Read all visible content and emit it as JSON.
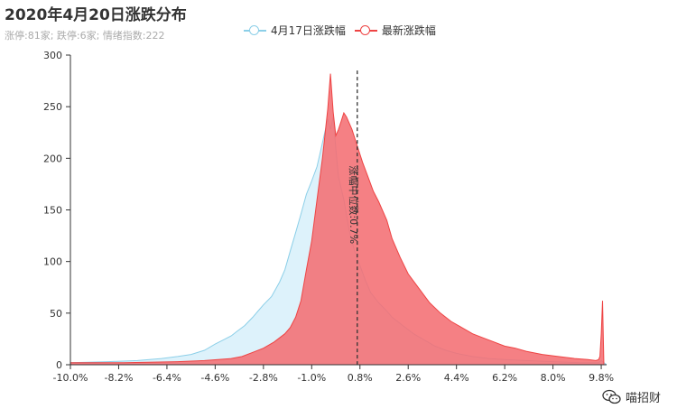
{
  "title": "2020年4月20日涨跌分布",
  "subtitle": "涨停:81家; 跌停:6家; 情绪指数:222",
  "watermark": "喵招财",
  "colors": {
    "series1_line": "#8ccfe8",
    "series1_fill": "#d9f1fb",
    "series2_line": "#ee4444",
    "series2_fill": "#f46e73",
    "axis": "#333333",
    "median_line": "#333333"
  },
  "chart_data": {
    "type": "area",
    "title": "2020年4月20日涨跌分布",
    "xlim": [
      -10.0,
      10.0
    ],
    "ylim": [
      0,
      300
    ],
    "y_ticks": [
      0,
      50,
      100,
      150,
      200,
      250,
      300
    ],
    "x_tick_labels": [
      "-10.0%",
      "-8.2%",
      "-6.4%",
      "-4.6%",
      "-2.8%",
      "-1.0%",
      "0.8%",
      "2.6%",
      "4.4%",
      "6.2%",
      "8.0%",
      "9.8%"
    ],
    "x_tick_values": [
      -10.0,
      -8.2,
      -6.4,
      -4.6,
      -2.8,
      -1.0,
      0.8,
      2.6,
      4.4,
      6.2,
      8.0,
      9.8
    ],
    "legend_position": "top-center",
    "series": [
      {
        "name": "4月17日涨跌幅",
        "x": [
          -10.0,
          -8.6,
          -7.5,
          -6.6,
          -6.0,
          -5.5,
          -5.0,
          -4.6,
          -4.3,
          -4.0,
          -3.8,
          -3.5,
          -3.2,
          -3.0,
          -2.8,
          -2.5,
          -2.2,
          -2.0,
          -1.8,
          -1.6,
          -1.4,
          -1.2,
          -1.0,
          -0.8,
          -0.6,
          -0.4,
          -0.3,
          -0.2,
          -0.1,
          0.0,
          0.2,
          0.4,
          0.6,
          0.8,
          1.0,
          1.2,
          1.5,
          1.8,
          2.0,
          2.4,
          2.8,
          3.2,
          3.6,
          4.0,
          4.4,
          5.0,
          5.6,
          6.2,
          7.0,
          8.0,
          9.0,
          9.7,
          9.8,
          9.9,
          10.0
        ],
        "values": [
          2,
          3,
          4,
          6,
          8,
          10,
          14,
          20,
          24,
          28,
          32,
          38,
          46,
          52,
          58,
          66,
          80,
          92,
          110,
          128,
          146,
          165,
          178,
          192,
          215,
          238,
          228,
          240,
          210,
          182,
          160,
          130,
          110,
          96,
          82,
          70,
          60,
          52,
          46,
          38,
          30,
          24,
          18,
          14,
          11,
          8,
          6,
          5,
          4,
          3,
          2,
          2,
          4,
          2,
          0
        ]
      },
      {
        "name": "最新涨跌幅",
        "x": [
          -10.0,
          -8.0,
          -6.0,
          -5.0,
          -4.0,
          -3.6,
          -3.2,
          -2.8,
          -2.4,
          -2.0,
          -1.8,
          -1.6,
          -1.4,
          -1.2,
          -1.0,
          -0.8,
          -0.6,
          -0.4,
          -0.3,
          -0.2,
          -0.1,
          0.0,
          0.1,
          0.2,
          0.3,
          0.5,
          0.7,
          0.9,
          1.1,
          1.3,
          1.5,
          1.8,
          2.0,
          2.3,
          2.6,
          3.0,
          3.4,
          3.8,
          4.2,
          4.6,
          5.0,
          5.4,
          5.8,
          6.2,
          6.6,
          7.0,
          7.6,
          8.2,
          8.8,
          9.3,
          9.6,
          9.7,
          9.75,
          9.8,
          9.85,
          9.9
        ],
        "values": [
          2,
          2,
          3,
          4,
          6,
          8,
          12,
          16,
          22,
          30,
          36,
          46,
          62,
          92,
          120,
          160,
          200,
          248,
          282,
          245,
          222,
          228,
          236,
          244,
          240,
          228,
          212,
          196,
          182,
          168,
          158,
          140,
          122,
          104,
          88,
          74,
          60,
          50,
          42,
          36,
          30,
          26,
          22,
          18,
          16,
          13,
          10,
          8,
          6,
          5,
          4,
          5,
          8,
          30,
          62,
          0
        ]
      }
    ],
    "annotations": [
      {
        "type": "vertical-line",
        "x": 0.7,
        "label": "涨幅中位数:0.7%"
      }
    ]
  }
}
